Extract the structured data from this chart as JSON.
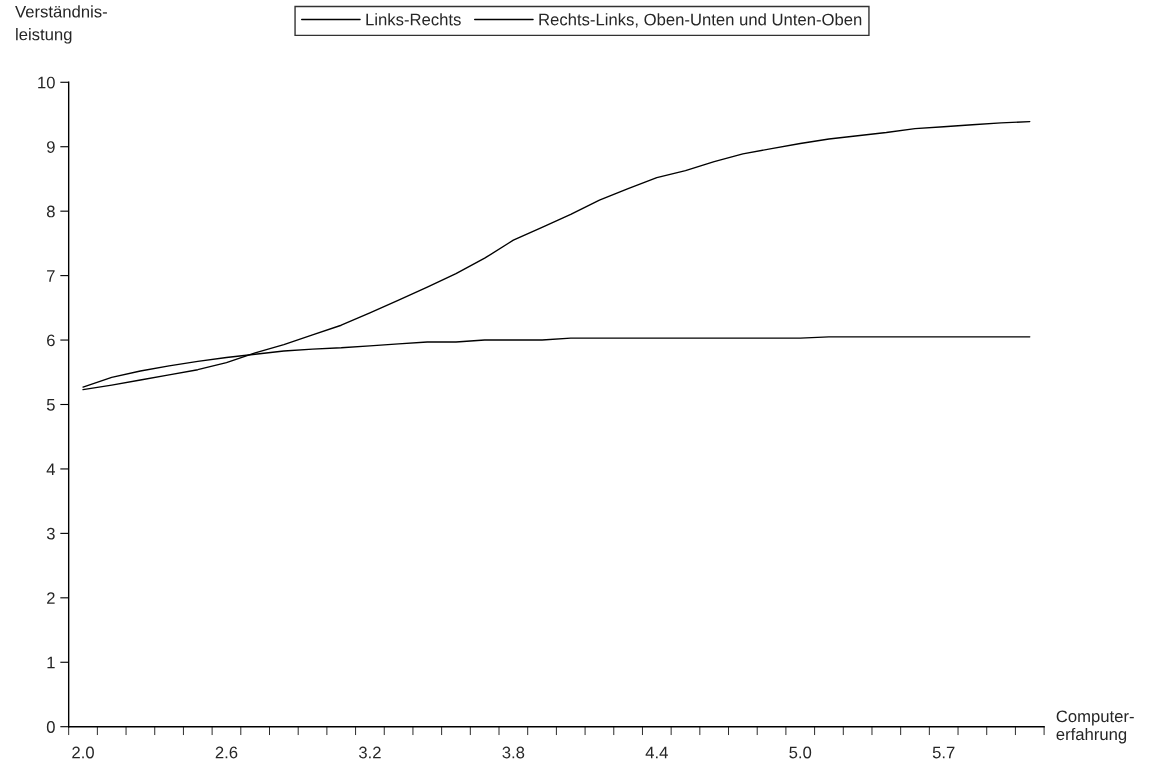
{
  "chart_data": {
    "type": "line",
    "xlabel": "Computer-\nerfahrung",
    "ylabel": "Verständnis-\nleistung",
    "categories": [
      "2.0",
      null,
      null,
      null,
      null,
      "2.6",
      null,
      null,
      null,
      null,
      "3.2",
      null,
      null,
      null,
      null,
      "3.8",
      null,
      null,
      null,
      null,
      "4.4",
      null,
      null,
      null,
      null,
      "5.0",
      null,
      null,
      null,
      null,
      "5.7",
      null,
      null,
      null
    ],
    "series": [
      {
        "name": "Links-Rechts",
        "color": "#000000",
        "values": [
          5.23,
          5.3,
          5.38,
          5.46,
          5.54,
          5.65,
          5.8,
          5.93,
          6.08,
          6.23,
          6.42,
          6.62,
          6.82,
          7.03,
          7.27,
          7.55,
          7.75,
          7.95,
          8.17,
          8.35,
          8.52,
          8.63,
          8.77,
          8.89,
          8.97,
          9.05,
          9.12,
          9.17,
          9.22,
          9.28,
          9.31,
          9.34,
          9.37,
          9.39
        ]
      },
      {
        "name": "Rechts-Links, Oben-Unten und Unten-Oben",
        "color": "#000000",
        "values": [
          5.27,
          5.42,
          5.52,
          5.6,
          5.67,
          5.73,
          5.78,
          5.83,
          5.86,
          5.88,
          5.91,
          5.94,
          5.97,
          5.97,
          6.0,
          6.0,
          6.0,
          6.03,
          6.03,
          6.03,
          6.03,
          6.03,
          6.03,
          6.03,
          6.03,
          6.03,
          6.05,
          6.05,
          6.05,
          6.05,
          6.05,
          6.05,
          6.05,
          6.05
        ]
      }
    ],
    "ylim": [
      0,
      10
    ],
    "yticks": [
      0,
      1,
      2,
      3,
      4,
      5,
      6,
      7,
      8,
      9,
      10
    ],
    "grid": false,
    "legend": "top",
    "marker": "none",
    "line_style": "solid"
  }
}
